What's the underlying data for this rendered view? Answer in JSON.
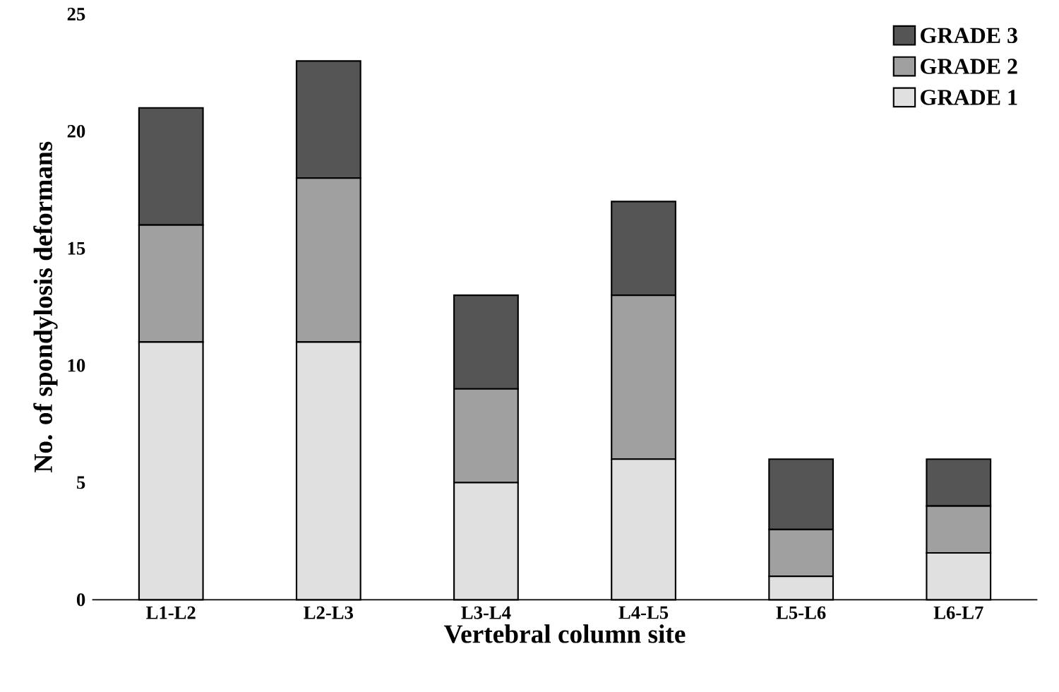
{
  "chart_data": {
    "type": "bar",
    "xlabel": "Vertebral column site",
    "ylabel": "No. of spondylosis deformans",
    "categories": [
      "L1-L2",
      "L2-L3",
      "L3-L4",
      "L4-L5",
      "L5-L6",
      "L6-L7"
    ],
    "stacked": true,
    "ylim": [
      0,
      25
    ],
    "yticks": [
      0,
      5,
      10,
      15,
      20,
      25
    ],
    "grid": false,
    "legend": "top right",
    "series": [
      {
        "name": "GRADE 1",
        "color": "#e0e0e0",
        "values": [
          11,
          11,
          5,
          6,
          1,
          2
        ]
      },
      {
        "name": "GRADE 2",
        "color": "#a0a0a0",
        "values": [
          5,
          7,
          4,
          7,
          2,
          2
        ]
      },
      {
        "name": "GRADE 3",
        "color": "#555555",
        "values": [
          5,
          5,
          4,
          4,
          3,
          2
        ]
      }
    ]
  }
}
